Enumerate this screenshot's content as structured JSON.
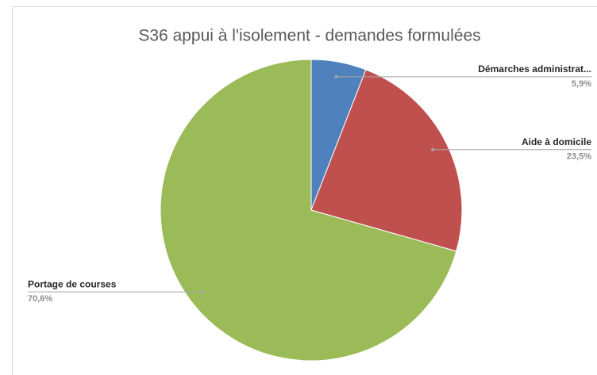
{
  "chart_data": {
    "type": "pie",
    "title": "S36 appui à l'isolement - demandes  formulées",
    "categories": [
      "Démarches administrat...",
      "Aide à domicile",
      "Portage de courses"
    ],
    "values": [
      5.9,
      23.5,
      70.6
    ],
    "value_labels": [
      "5,9%",
      "23,5%",
      "70,6%"
    ],
    "colors": [
      "#4f81bd",
      "#c0504d",
      "#9bbb59"
    ]
  }
}
